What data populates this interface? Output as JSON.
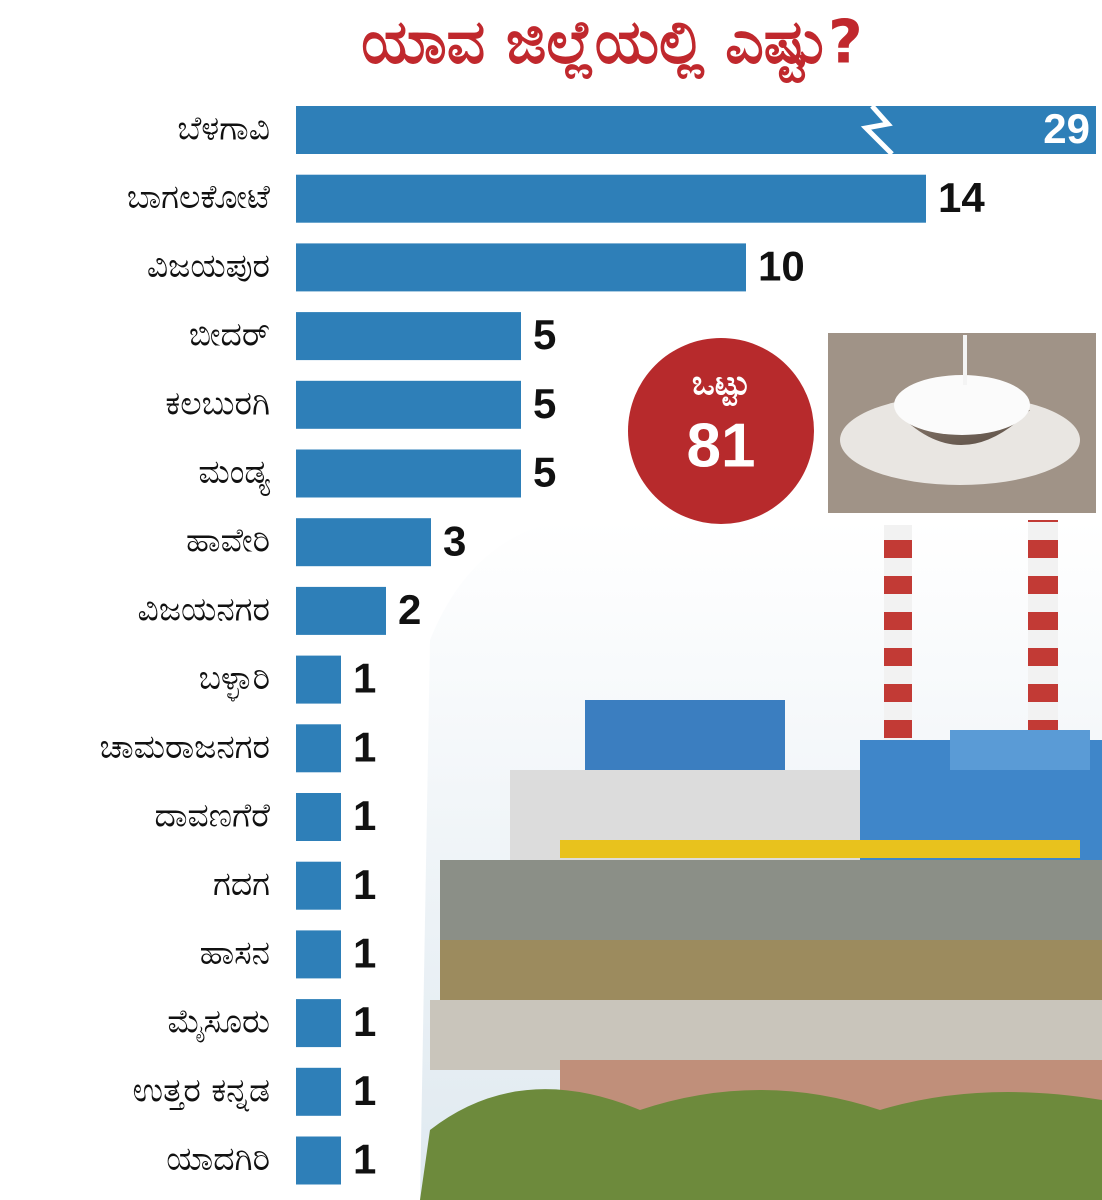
{
  "chart_data": {
    "type": "bar",
    "orientation": "horizontal",
    "title": "ಯಾವ ಜಿಲ್ಲೆಯಲ್ಲಿ ಎಷ್ಟು?",
    "categories": [
      "ಬೆಳಗಾವಿ",
      "ಬಾಗಲಕೋಟೆ",
      "ವಿಜಯಪುರ",
      "ಬೀದರ್",
      "ಕಲಬುರಗಿ",
      "ಮಂಡ್ಯ",
      "ಹಾವೇರಿ",
      "ವಿಜಯನಗರ",
      "ಬಳ್ಳಾರಿ",
      "ಚಾಮರಾಜನಗರ",
      "ದಾವಣಗೆರೆ",
      "ಗದಗ",
      "ಹಾಸನ",
      "ಮೈಸೂರು",
      "ಉತ್ತರ ಕನ್ನಡ",
      "ಯಾದಗಿರಿ"
    ],
    "values": [
      29,
      14,
      10,
      5,
      5,
      5,
      3,
      2,
      1,
      1,
      1,
      1,
      1,
      1,
      1,
      1
    ],
    "color": "#2e7fb8",
    "title_color": "#c0282d",
    "axis_break": true,
    "total": {
      "label": "ಒಟ್ಟು",
      "value": 81,
      "color": "#b72a2c"
    }
  }
}
